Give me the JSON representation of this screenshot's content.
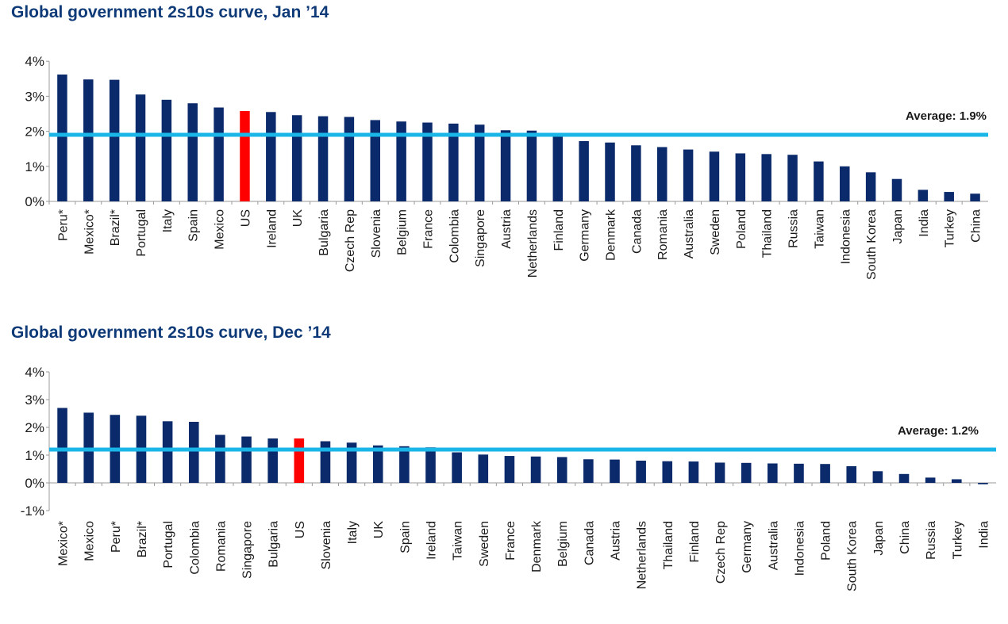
{
  "colors": {
    "bar": "#0b2a6b",
    "highlight": "#ff0000",
    "average_line": "#1ab6e8",
    "title": "#0e3a78",
    "axis": "#9a9a9a",
    "text": "#1a1a1a"
  },
  "chart_data": [
    {
      "type": "bar",
      "title": "Global government 2s10s curve, Jan ’14",
      "categories": [
        "Peru*",
        "Mexico*",
        "Brazil*",
        "Portugal",
        "Italy",
        "Spain",
        "Mexico",
        "US",
        "Ireland",
        "UK",
        "Bulgaria",
        "Czech Rep",
        "Slovenia",
        "Belgium",
        "France",
        "Colombia",
        "Singapore",
        "Austria",
        "Netherlands",
        "Finland",
        "Germany",
        "Denmark",
        "Canada",
        "Romania",
        "Australia",
        "Sweden",
        "Poland",
        "Thailand",
        "Russia",
        "Taiwan",
        "Indonesia",
        "South Korea",
        "Japan",
        "India",
        "Turkey",
        "China"
      ],
      "values": [
        3.62,
        3.48,
        3.47,
        3.05,
        2.9,
        2.8,
        2.68,
        2.58,
        2.55,
        2.46,
        2.43,
        2.41,
        2.32,
        2.28,
        2.25,
        2.22,
        2.19,
        2.03,
        2.02,
        1.92,
        1.72,
        1.68,
        1.6,
        1.55,
        1.48,
        1.42,
        1.37,
        1.35,
        1.33,
        1.14,
        1.0,
        0.83,
        0.64,
        0.33,
        0.27,
        0.22
      ],
      "highlight_category": "US",
      "ylim": [
        0,
        4
      ],
      "yticks": [
        0,
        1,
        2,
        3,
        4
      ],
      "ytick_labels": [
        "0%",
        "1%",
        "2%",
        "3%",
        "4%"
      ],
      "average": {
        "value": 1.9,
        "label": "Average: 1.9%"
      },
      "xlabel": "",
      "ylabel": "",
      "grid": false
    },
    {
      "type": "bar",
      "title": "Global government 2s10s curve, Dec ’14",
      "categories": [
        "Mexico*",
        "Mexico",
        "Peru*",
        "Brazil*",
        "Portugal",
        "Colombia",
        "Romania",
        "Singapore",
        "Bulgaria",
        "US",
        "Slovenia",
        "Italy",
        "UK",
        "Spain",
        "Ireland",
        "Taiwan",
        "Sweden",
        "France",
        "Denmark",
        "Belgium",
        "Canada",
        "Austria",
        "Netherlands",
        "Thailand",
        "Finland",
        "Czech Rep",
        "Germany",
        "Australia",
        "Indonesia",
        "Poland",
        "South Korea",
        "Japan",
        "China",
        "Russia",
        "Turkey",
        "India"
      ],
      "values": [
        2.7,
        2.53,
        2.45,
        2.42,
        2.22,
        2.2,
        1.73,
        1.67,
        1.6,
        1.6,
        1.5,
        1.45,
        1.35,
        1.32,
        1.28,
        1.1,
        1.02,
        0.97,
        0.95,
        0.93,
        0.85,
        0.84,
        0.8,
        0.78,
        0.77,
        0.73,
        0.72,
        0.7,
        0.69,
        0.68,
        0.6,
        0.42,
        0.32,
        0.19,
        0.13,
        -0.05
      ],
      "highlight_category": "US",
      "ylim": [
        -1,
        4
      ],
      "yticks": [
        -1,
        0,
        1,
        2,
        3,
        4
      ],
      "ytick_labels": [
        "-1%",
        "0%",
        "1%",
        "2%",
        "3%",
        "4%"
      ],
      "average": {
        "value": 1.2,
        "label": "Average: 1.2%"
      },
      "xlabel": "",
      "ylabel": "",
      "grid": false
    }
  ]
}
